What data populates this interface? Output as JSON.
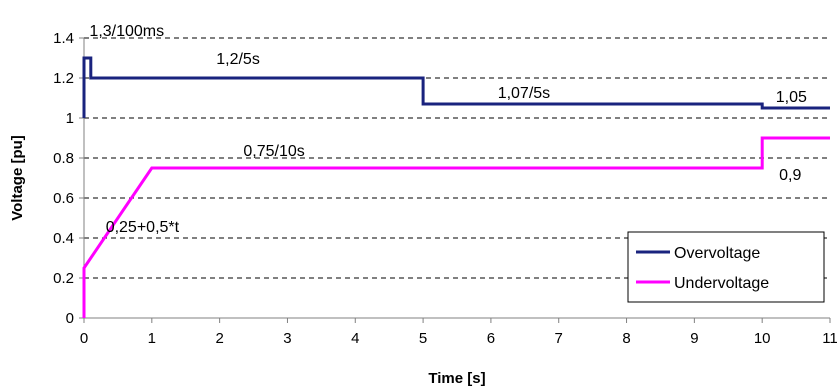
{
  "chart_data": {
    "type": "line",
    "title": "",
    "xlabel": "Time [s]",
    "ylabel": "Voltage [pu]",
    "xlim": [
      0,
      11
    ],
    "ylim": [
      0,
      1.4
    ],
    "x_ticks": [
      0,
      1,
      2,
      3,
      4,
      5,
      6,
      7,
      8,
      9,
      10,
      11
    ],
    "y_ticks": [
      0,
      0.2,
      0.4,
      0.6,
      0.8,
      1,
      1.2,
      1.4
    ],
    "y_tick_labels": [
      "0",
      "0.2",
      "0.4",
      "0.6",
      "0.8",
      "1",
      "1.2",
      "1.4"
    ],
    "grid": "horizontal dashed",
    "legend_position": "bottom-right",
    "series": [
      {
        "name": "Overvoltage",
        "color": "#1a237e",
        "points": [
          [
            0,
            1.0
          ],
          [
            0,
            1.3
          ],
          [
            0.1,
            1.3
          ],
          [
            0.1,
            1.2
          ],
          [
            5,
            1.2
          ],
          [
            5,
            1.07
          ],
          [
            10,
            1.07
          ],
          [
            10,
            1.05
          ],
          [
            11,
            1.05
          ]
        ]
      },
      {
        "name": "Undervoltage",
        "color": "#ff00ff",
        "points": [
          [
            0,
            0
          ],
          [
            0,
            0.25
          ],
          [
            1,
            0.75
          ],
          [
            10,
            0.75
          ],
          [
            10,
            0.9
          ],
          [
            11,
            0.9
          ]
        ]
      }
    ],
    "annotations": [
      {
        "text": "1,3/100ms",
        "x": 0.08,
        "y": 1.41
      },
      {
        "text": "1,2/5s",
        "x": 1.95,
        "y": 1.27
      },
      {
        "text": "1,07/5s",
        "x": 6.1,
        "y": 1.1
      },
      {
        "text": "1,05",
        "x": 10.2,
        "y": 1.08
      },
      {
        "text": "0,75/10s",
        "x": 2.35,
        "y": 0.81
      },
      {
        "text": "0,9",
        "x": 10.25,
        "y": 0.69
      },
      {
        "text": "0,25+0,5*t",
        "x": 0.32,
        "y": 0.43
      }
    ]
  }
}
